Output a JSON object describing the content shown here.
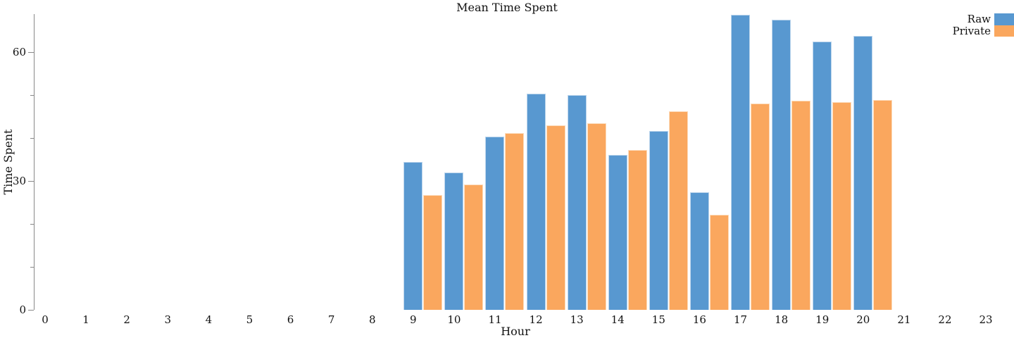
{
  "title": "Mean Time Spent",
  "legend": [
    {
      "label": "Raw",
      "color": "#5898D0"
    },
    {
      "label": "Private",
      "color": "#FAA75E"
    }
  ],
  "axes": {
    "x": {
      "label": "Hour",
      "ticks": [
        "0",
        "1",
        "2",
        "3",
        "4",
        "5",
        "6",
        "7",
        "8",
        "9",
        "10",
        "11",
        "12",
        "13",
        "14",
        "15",
        "16",
        "17",
        "18",
        "19",
        "20",
        "21",
        "22",
        "23"
      ]
    },
    "y": {
      "label": "Time Spent",
      "major_ticks": [
        0,
        30,
        60
      ],
      "major_tick_labels": [
        "0",
        "30",
        "60"
      ],
      "minor_ticks": [
        10,
        20,
        40,
        50
      ]
    }
  },
  "chart_data": {
    "type": "bar",
    "title": "Mean Time Spent",
    "xlabel": "Hour",
    "ylabel": "Time Spent",
    "x_domain": [
      0,
      23
    ],
    "ylim": [
      0,
      68.8
    ],
    "grid": false,
    "legend_position": "top-right",
    "categories": [
      9,
      10,
      11,
      12,
      13,
      14,
      15,
      16,
      17,
      18,
      19,
      20
    ],
    "series": [
      {
        "name": "Raw",
        "color": "#5898D0",
        "edge_color": "#BCD5EC",
        "values": [
          34.4,
          32.0,
          40.3,
          50.4,
          50.0,
          36.0,
          41.7,
          27.3,
          68.7,
          67.5,
          62.5,
          63.8
        ]
      },
      {
        "name": "Private",
        "color": "#FAA75E",
        "edge_color": "#FCDCBC",
        "values": [
          26.7,
          29.2,
          41.1,
          42.9,
          43.5,
          37.2,
          46.2,
          22.2,
          48.0,
          48.7,
          48.3,
          48.9
        ]
      }
    ]
  }
}
